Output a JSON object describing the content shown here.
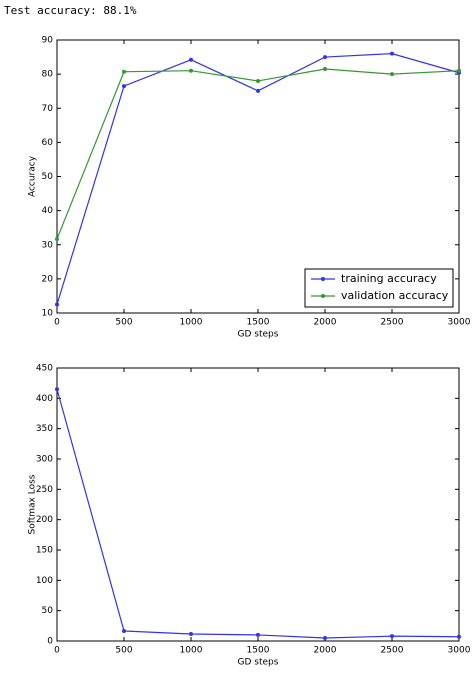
{
  "output_text": "Test accuracy: 88.1%",
  "chart_data": [
    {
      "type": "line",
      "xlabel": "GD steps",
      "ylabel": "Accuracy",
      "x": [
        0,
        500,
        1000,
        1500,
        2000,
        2500,
        3000
      ],
      "series": [
        {
          "name": "training accuracy",
          "color": "#3333ee",
          "values": [
            12.5,
            76.5,
            84.2,
            75.1,
            85,
            86,
            80.4
          ]
        },
        {
          "name": "validation accuracy",
          "color": "#339933",
          "values": [
            31.7,
            80.7,
            81,
            78,
            81.5,
            80,
            81
          ]
        }
      ],
      "xlim": [
        0,
        3000
      ],
      "xticks": [
        0,
        500,
        1000,
        1500,
        2000,
        2500,
        3000
      ],
      "ylim": [
        10,
        90
      ],
      "yticks": [
        10,
        20,
        30,
        40,
        50,
        60,
        70,
        80,
        90
      ],
      "legend": "lower right"
    },
    {
      "type": "line",
      "xlabel": "GD steps",
      "ylabel": "Softmax Loss",
      "x": [
        0,
        500,
        1000,
        1500,
        2000,
        2500,
        3000
      ],
      "values": [
        415,
        16.5,
        11.5,
        10,
        5,
        8,
        7
      ],
      "color": "#3333ee",
      "xlim": [
        0,
        3000
      ],
      "xticks": [
        0,
        500,
        1000,
        1500,
        2000,
        2500,
        3000
      ],
      "ylim": [
        0,
        450
      ],
      "yticks": [
        0,
        50,
        100,
        150,
        200,
        250,
        300,
        350,
        400,
        450
      ]
    }
  ]
}
